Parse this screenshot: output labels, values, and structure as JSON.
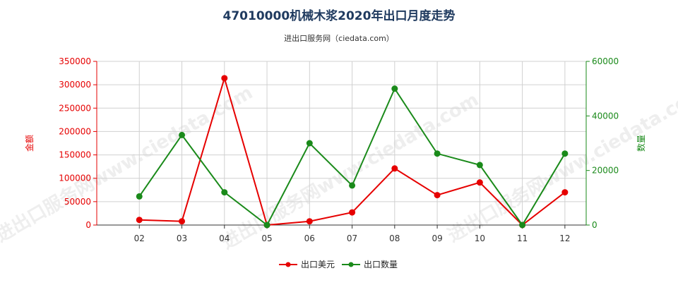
{
  "chart_data": {
    "type": "line",
    "title": "47010000机械木浆2020年出口月度走势",
    "subtitle": "进出口服务网（ciedata.com）",
    "watermark": "进出口服务网www.ciedata.com",
    "categories": [
      "02",
      "03",
      "04",
      "05",
      "06",
      "07",
      "08",
      "09",
      "10",
      "11",
      "12"
    ],
    "y_left": {
      "label": "金额",
      "min": 0,
      "max": 350000,
      "ticks": [
        0,
        50000,
        100000,
        150000,
        200000,
        250000,
        300000,
        350000
      ],
      "tick_labels": [
        "0",
        "50000",
        "100000",
        "150000",
        "200000",
        "250000",
        "300000",
        "350000"
      ],
      "color": "#e60000"
    },
    "y_right": {
      "label": "数量",
      "min": 0,
      "max": 60000,
      "ticks": [
        0,
        20000,
        40000,
        60000
      ],
      "tick_labels": [
        "0",
        "20000",
        "40000",
        "60000"
      ],
      "color": "#1a8a1a"
    },
    "grid": true,
    "legend_position": "bottom-center",
    "series": [
      {
        "name": "出口美元",
        "axis": "left",
        "color": "#e60000",
        "values": [
          11000,
          8000,
          314000,
          0,
          8000,
          27000,
          121000,
          64000,
          91000,
          0,
          70000
        ]
      },
      {
        "name": "出口数量",
        "axis": "right",
        "color": "#1a8a1a",
        "values": [
          10500,
          33000,
          12000,
          0,
          30000,
          14500,
          50000,
          26200,
          22000,
          0,
          26200
        ]
      }
    ]
  }
}
